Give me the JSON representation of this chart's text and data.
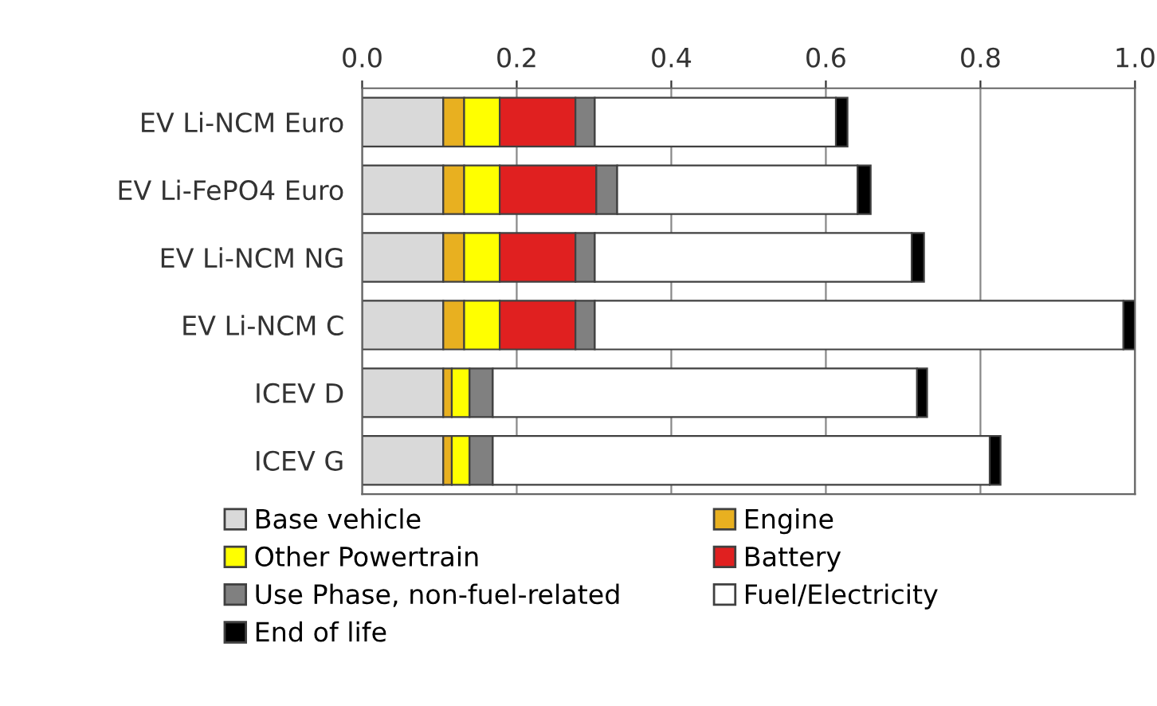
{
  "chart_data": {
    "type": "bar",
    "orientation": "horizontal",
    "stacked": true,
    "categories": [
      "EV Li-NCM Euro",
      "EV Li-FePO4 Euro",
      "EV Li-NCM NG",
      "EV Li-NCM C",
      "ICEV D",
      "ICEV G"
    ],
    "series": [
      {
        "name": "Base vehicle",
        "color": "#d9d9d9",
        "values": [
          0.105,
          0.105,
          0.105,
          0.105,
          0.105,
          0.105
        ]
      },
      {
        "name": "Engine",
        "color": "#e8b020",
        "values": [
          0.027,
          0.027,
          0.027,
          0.027,
          0.011,
          0.011
        ]
      },
      {
        "name": "Other Powertrain",
        "color": "#ffff00",
        "values": [
          0.046,
          0.046,
          0.046,
          0.046,
          0.023,
          0.023
        ]
      },
      {
        "name": "Battery",
        "color": "#e02020",
        "values": [
          0.098,
          0.125,
          0.098,
          0.098,
          0,
          0
        ]
      },
      {
        "name": "Use Phase, non-fuel-related",
        "color": "#808080",
        "values": [
          0.025,
          0.027,
          0.025,
          0.025,
          0.03,
          0.03
        ]
      },
      {
        "name": "Fuel/Electricity",
        "color": "#ffffff",
        "values": [
          0.312,
          0.311,
          0.41,
          0.684,
          0.549,
          0.643
        ]
      },
      {
        "name": "End of life",
        "color": "#000000",
        "values": [
          0.015,
          0.017,
          0.016,
          0.015,
          0.013,
          0.014
        ]
      }
    ],
    "xlim": [
      0,
      1.0
    ],
    "xticks": [
      {
        "value": 0,
        "label": "0.0"
      },
      0.2,
      0.4,
      0.6,
      0.8,
      {
        "value": 1.0,
        "label": "1.0"
      }
    ],
    "grid": "x",
    "legend": "bottom"
  }
}
